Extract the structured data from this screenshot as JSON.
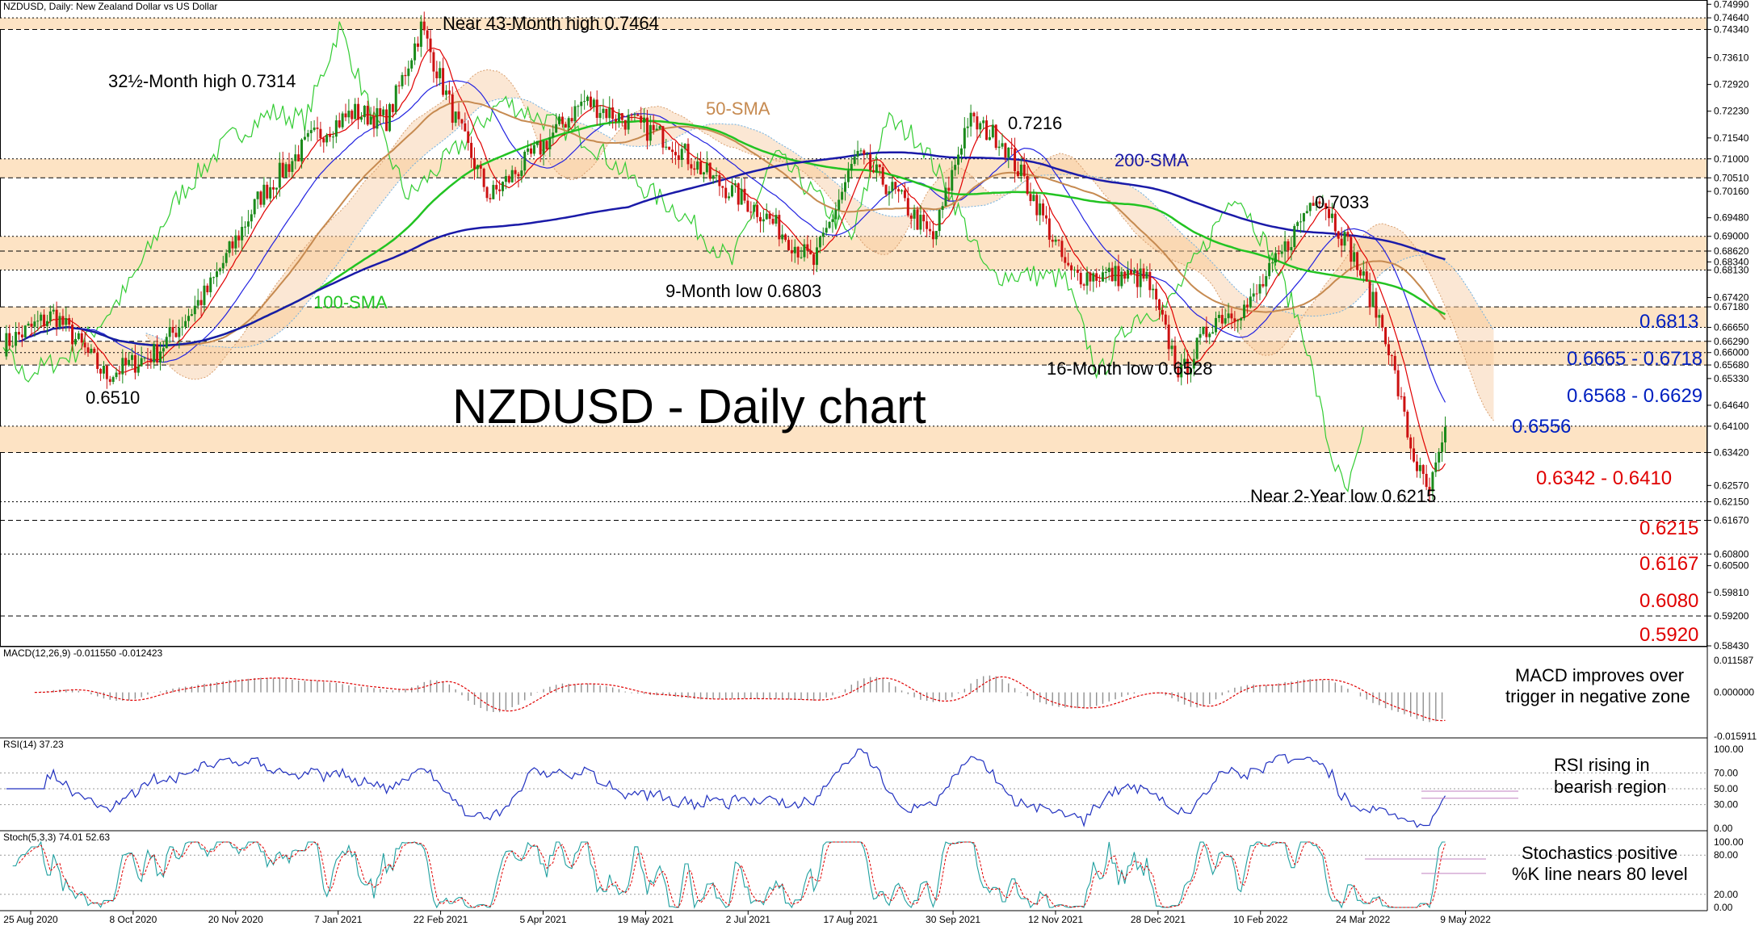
{
  "header": {
    "title": "NZDUSD, Daily:  New Zealand Dollar vs US Dollar",
    "macd_label": "MACD(12,26,9) -0.011550 -0.012423",
    "rsi_label": "RSI(14) 37.23",
    "stoch_label": "Stoch(5,3,3) 74.01 52.63"
  },
  "main_title": "NZDUSD - Daily chart",
  "colors": {
    "zone_fill": "#fde3c4",
    "sma50": "#c68a50",
    "sma100": "#22c322",
    "sma200": "#1a1aa8",
    "tenkan": "#e00000",
    "kijun": "#2222e0",
    "chikou": "#33cc33",
    "candle_up": "#1a8a1a",
    "candle_down": "#cc1111",
    "level_red": "#e00000",
    "level_blue": "#0020c0",
    "macd_signal": "#e00000",
    "rsi": "#2030c0",
    "stoch_k": "#20a0a0",
    "stoch_d": "#e00000"
  },
  "chart_data": [
    {
      "type": "line",
      "panel": "price",
      "y_ticks": [
        0.7499,
        0.7464,
        0.7434,
        0.7361,
        0.7292,
        0.7223,
        0.7154,
        0.71,
        0.7051,
        0.7016,
        0.6948,
        0.69,
        0.6862,
        0.6834,
        0.6813,
        0.6742,
        0.6718,
        0.6665,
        0.6629,
        0.66,
        0.6568,
        0.6533,
        0.6464,
        0.641,
        0.6342,
        0.6257,
        0.6215,
        0.6167,
        0.608,
        0.605,
        0.5981,
        0.592,
        0.5843
      ],
      "y_tick_labels": [
        "0.74990",
        "0.74640",
        "0.74340",
        "0.73610",
        "0.72920",
        "0.72230",
        "0.71540",
        "0.71000",
        "0.70510",
        "0.70160",
        "0.69480",
        "0.69000",
        "0.68620",
        "0.68340",
        "0.68130",
        "0.67420",
        "0.67180",
        "0.66650",
        "0.66290",
        "0.66000",
        "0.65680",
        "0.65330",
        "0.64640",
        "0.64100",
        "0.63420",
        "0.62570",
        "0.62150",
        "0.61670",
        "0.60800",
        "0.60500",
        "0.59810",
        "0.59200",
        "0.58430"
      ],
      "x_tick_labels": [
        "25 Aug 2020",
        "8 Oct 2020",
        "20 Nov 2020",
        "7 Jan 2021",
        "22 Feb 2021",
        "5 Apr 2021",
        "19 May 2021",
        "2 Jul 2021",
        "17 Aug 2021",
        "30 Sep 2021",
        "12 Nov 2021",
        "28 Dec 2021",
        "10 Feb 2022",
        "24 Mar 2022",
        "9 May 2022"
      ],
      "ylim": [
        0.5843,
        0.751
      ],
      "zones": [
        {
          "from": 0.7434,
          "to": 0.7464
        },
        {
          "from": 0.7051,
          "to": 0.71
        },
        {
          "from": 0.6813,
          "to": 0.69
        },
        {
          "from": 0.6665,
          "to": 0.6718
        },
        {
          "from": 0.6568,
          "to": 0.6629
        },
        {
          "from": 0.6342,
          "to": 0.641
        }
      ],
      "close_anchors": [
        {
          "x": 0,
          "y": 0.662
        },
        {
          "x": 0.03,
          "y": 0.67
        },
        {
          "x": 0.06,
          "y": 0.654
        },
        {
          "x": 0.09,
          "y": 0.66
        },
        {
          "x": 0.12,
          "y": 0.676
        },
        {
          "x": 0.15,
          "y": 0.7
        },
        {
          "x": 0.18,
          "y": 0.715
        },
        {
          "x": 0.205,
          "y": 0.722
        },
        {
          "x": 0.225,
          "y": 0.72
        },
        {
          "x": 0.245,
          "y": 0.744
        },
        {
          "x": 0.265,
          "y": 0.72
        },
        {
          "x": 0.285,
          "y": 0.7
        },
        {
          "x": 0.315,
          "y": 0.713
        },
        {
          "x": 0.34,
          "y": 0.725
        },
        {
          "x": 0.365,
          "y": 0.72
        },
        {
          "x": 0.39,
          "y": 0.715
        },
        {
          "x": 0.415,
          "y": 0.705
        },
        {
          "x": 0.445,
          "y": 0.696
        },
        {
          "x": 0.475,
          "y": 0.683
        },
        {
          "x": 0.5,
          "y": 0.711
        },
        {
          "x": 0.525,
          "y": 0.7
        },
        {
          "x": 0.545,
          "y": 0.689
        },
        {
          "x": 0.565,
          "y": 0.72
        },
        {
          "x": 0.585,
          "y": 0.715
        },
        {
          "x": 0.605,
          "y": 0.699
        },
        {
          "x": 0.625,
          "y": 0.68
        },
        {
          "x": 0.65,
          "y": 0.68
        },
        {
          "x": 0.67,
          "y": 0.679
        },
        {
          "x": 0.69,
          "y": 0.654
        },
        {
          "x": 0.71,
          "y": 0.669
        },
        {
          "x": 0.73,
          "y": 0.672
        },
        {
          "x": 0.75,
          "y": 0.686
        },
        {
          "x": 0.77,
          "y": 0.702
        },
        {
          "x": 0.79,
          "y": 0.686
        },
        {
          "x": 0.81,
          "y": 0.665
        },
        {
          "x": 0.825,
          "y": 0.635
        },
        {
          "x": 0.835,
          "y": 0.623
        },
        {
          "x": 0.845,
          "y": 0.638
        }
      ]
    },
    {
      "type": "bar",
      "panel": "macd",
      "y_tick_labels": [
        "0.011587",
        "0.000000",
        "-0.015911"
      ],
      "ylim": [
        -0.015911,
        0.011587
      ]
    },
    {
      "type": "line",
      "panel": "rsi",
      "y_tick_labels": [
        "100.00",
        "70.00",
        "50.00",
        "30.00",
        "0.00"
      ],
      "ylim": [
        0,
        100
      ],
      "value": 37.23
    },
    {
      "type": "line",
      "panel": "stoch",
      "y_tick_labels": [
        "100.00",
        "80.00",
        "20.00",
        "0.00"
      ],
      "ylim": [
        0,
        100
      ],
      "k": 74.01,
      "d": 52.63
    }
  ],
  "annotations": {
    "high43": "Near 43-Month high 0.7464",
    "high32": "32½-Month high 0.7314",
    "sma50": "50-SMA",
    "h7216": "0.7216",
    "sma200": "200-SMA",
    "h7033": "0.7033",
    "sma100": "100-SMA",
    "low9m": "9-Month low 0.6803",
    "l6510": "0.6510",
    "low16m": "16-Month low 0.6528",
    "low2y": "Near 2-Year low 0.6215",
    "macd_note_1": "MACD improves over",
    "macd_note_2": "trigger in negative zone",
    "rsi_note_1": "RSI rising in",
    "rsi_note_2": "bearish region",
    "stoch_note_1": "Stochastics positive",
    "stoch_note_2": "%K line nears 80 level"
  },
  "levels": {
    "l6813": "0.6813",
    "l6665": "0.6665 - 0.6718",
    "l6568": "0.6568 - 0.6629",
    "l6556": "0.6556",
    "l6342": "0.6342 - 0.6410",
    "l6215": "0.6215",
    "l6167": "0.6167",
    "l6080": "0.6080",
    "l5920": "0.5920"
  }
}
